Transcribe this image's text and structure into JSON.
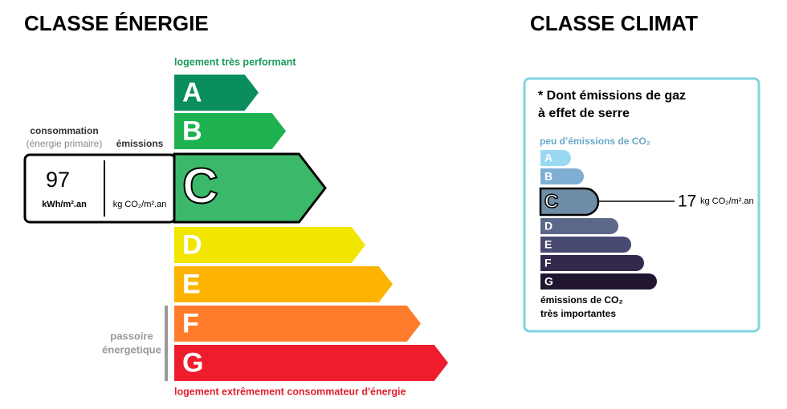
{
  "energy": {
    "title": "CLASSE ÉNERGIE",
    "top_label": "logement très performant",
    "bottom_label": "logement extrêmement consommateur d'énergie",
    "consumption_label": "consommation",
    "primary_energy_label": "(énergie primaire)",
    "emissions_label": "émissions",
    "consumption_value": 97,
    "consumption_unit": "kWh/m².an",
    "emissions_unit": "kg CO₂/m².an",
    "passoire": [
      "passoire",
      "énergetique"
    ],
    "classes": [
      {
        "letter": "A",
        "color": "#0a8f5c"
      },
      {
        "letter": "B",
        "color": "#1db14f"
      },
      {
        "letter": "C",
        "color": "#3cb86a"
      },
      {
        "letter": "D",
        "color": "#f2e500"
      },
      {
        "letter": "E",
        "color": "#fdb400"
      },
      {
        "letter": "F",
        "color": "#fe7c2b"
      },
      {
        "letter": "G",
        "color": "#ef1c2e"
      }
    ]
  },
  "climate": {
    "title": "CLASSE CLIMAT",
    "note": [
      "* Dont émissions de gaz",
      "à effet de serre"
    ],
    "top_label": "peu d’émissions de CO₂",
    "bottom_label": [
      "émissions de CO₂",
      "très importantes"
    ],
    "value": 17,
    "unit": "kg CO₂/m².an",
    "classes": [
      {
        "letter": "A",
        "color": "#9ad9f1"
      },
      {
        "letter": "B",
        "color": "#7eaed2"
      },
      {
        "letter": "C",
        "color": "#6f8da7"
      },
      {
        "letter": "D",
        "color": "#5c6889"
      },
      {
        "letter": "E",
        "color": "#484a72"
      },
      {
        "letter": "F",
        "color": "#33294d"
      },
      {
        "letter": "G",
        "color": "#211530"
      }
    ]
  }
}
